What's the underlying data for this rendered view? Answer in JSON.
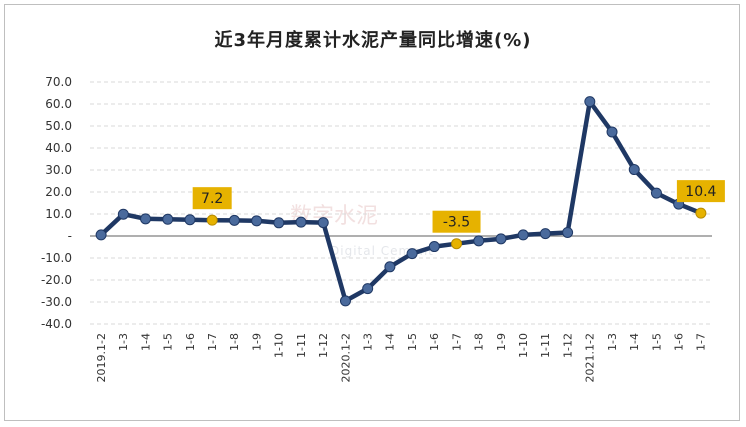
{
  "chart_data": {
    "type": "line",
    "title": "近3年月度累计水泥产量同比增速(%)",
    "xlabel": "",
    "ylabel": "",
    "ylim": [
      -40,
      70
    ],
    "yticks": [
      "70.0",
      "60.0",
      "50.0",
      "40.0",
      "30.0",
      "20.0",
      "10.0",
      "-",
      "-10.0",
      "-20.0",
      "-30.0",
      "-40.0"
    ],
    "ytick_values": [
      70,
      60,
      50,
      40,
      30,
      20,
      10,
      0,
      -10,
      -20,
      -30,
      -40
    ],
    "categories": [
      "2019.1-2",
      "1-3",
      "1-4",
      "1-5",
      "1-6",
      "1-7",
      "1-8",
      "1-9",
      "1-10",
      "1-11",
      "1-12",
      "2020.1-2",
      "1-3",
      "1-4",
      "1-5",
      "1-6",
      "1-7",
      "1-8",
      "1-9",
      "1-10",
      "1-11",
      "1-12",
      "2021.1-2",
      "1-3",
      "1-4",
      "1-5",
      "1-6",
      "1-7"
    ],
    "series": [
      {
        "values": [
          0.5,
          9.9,
          7.8,
          7.6,
          7.4,
          7.2,
          7.1,
          6.9,
          6.0,
          6.3,
          6.1,
          -29.5,
          -23.9,
          -14.0,
          -8.0,
          -4.8,
          -3.5,
          -2.2,
          -1.3,
          0.5,
          1.1,
          1.6,
          61.1,
          47.3,
          30.2,
          19.5,
          14.5,
          10.4
        ],
        "color": "#1f3864"
      }
    ],
    "data_labels": [
      {
        "index": 5,
        "text": "7.2"
      },
      {
        "index": 16,
        "text": "-3.5"
      },
      {
        "index": 27,
        "text": "10.4"
      }
    ],
    "grid": true,
    "legend": "none"
  },
  "watermark": {
    "text": "数字水泥",
    "subtext": "Digital Cement"
  },
  "colors": {
    "line": "#1f3864",
    "marker_fill": "#4a6a9c",
    "highlight_marker": "#e6b200",
    "label_box": "#e6b200",
    "grid": "#d9d9d9",
    "axis": "#7f7f7f"
  }
}
